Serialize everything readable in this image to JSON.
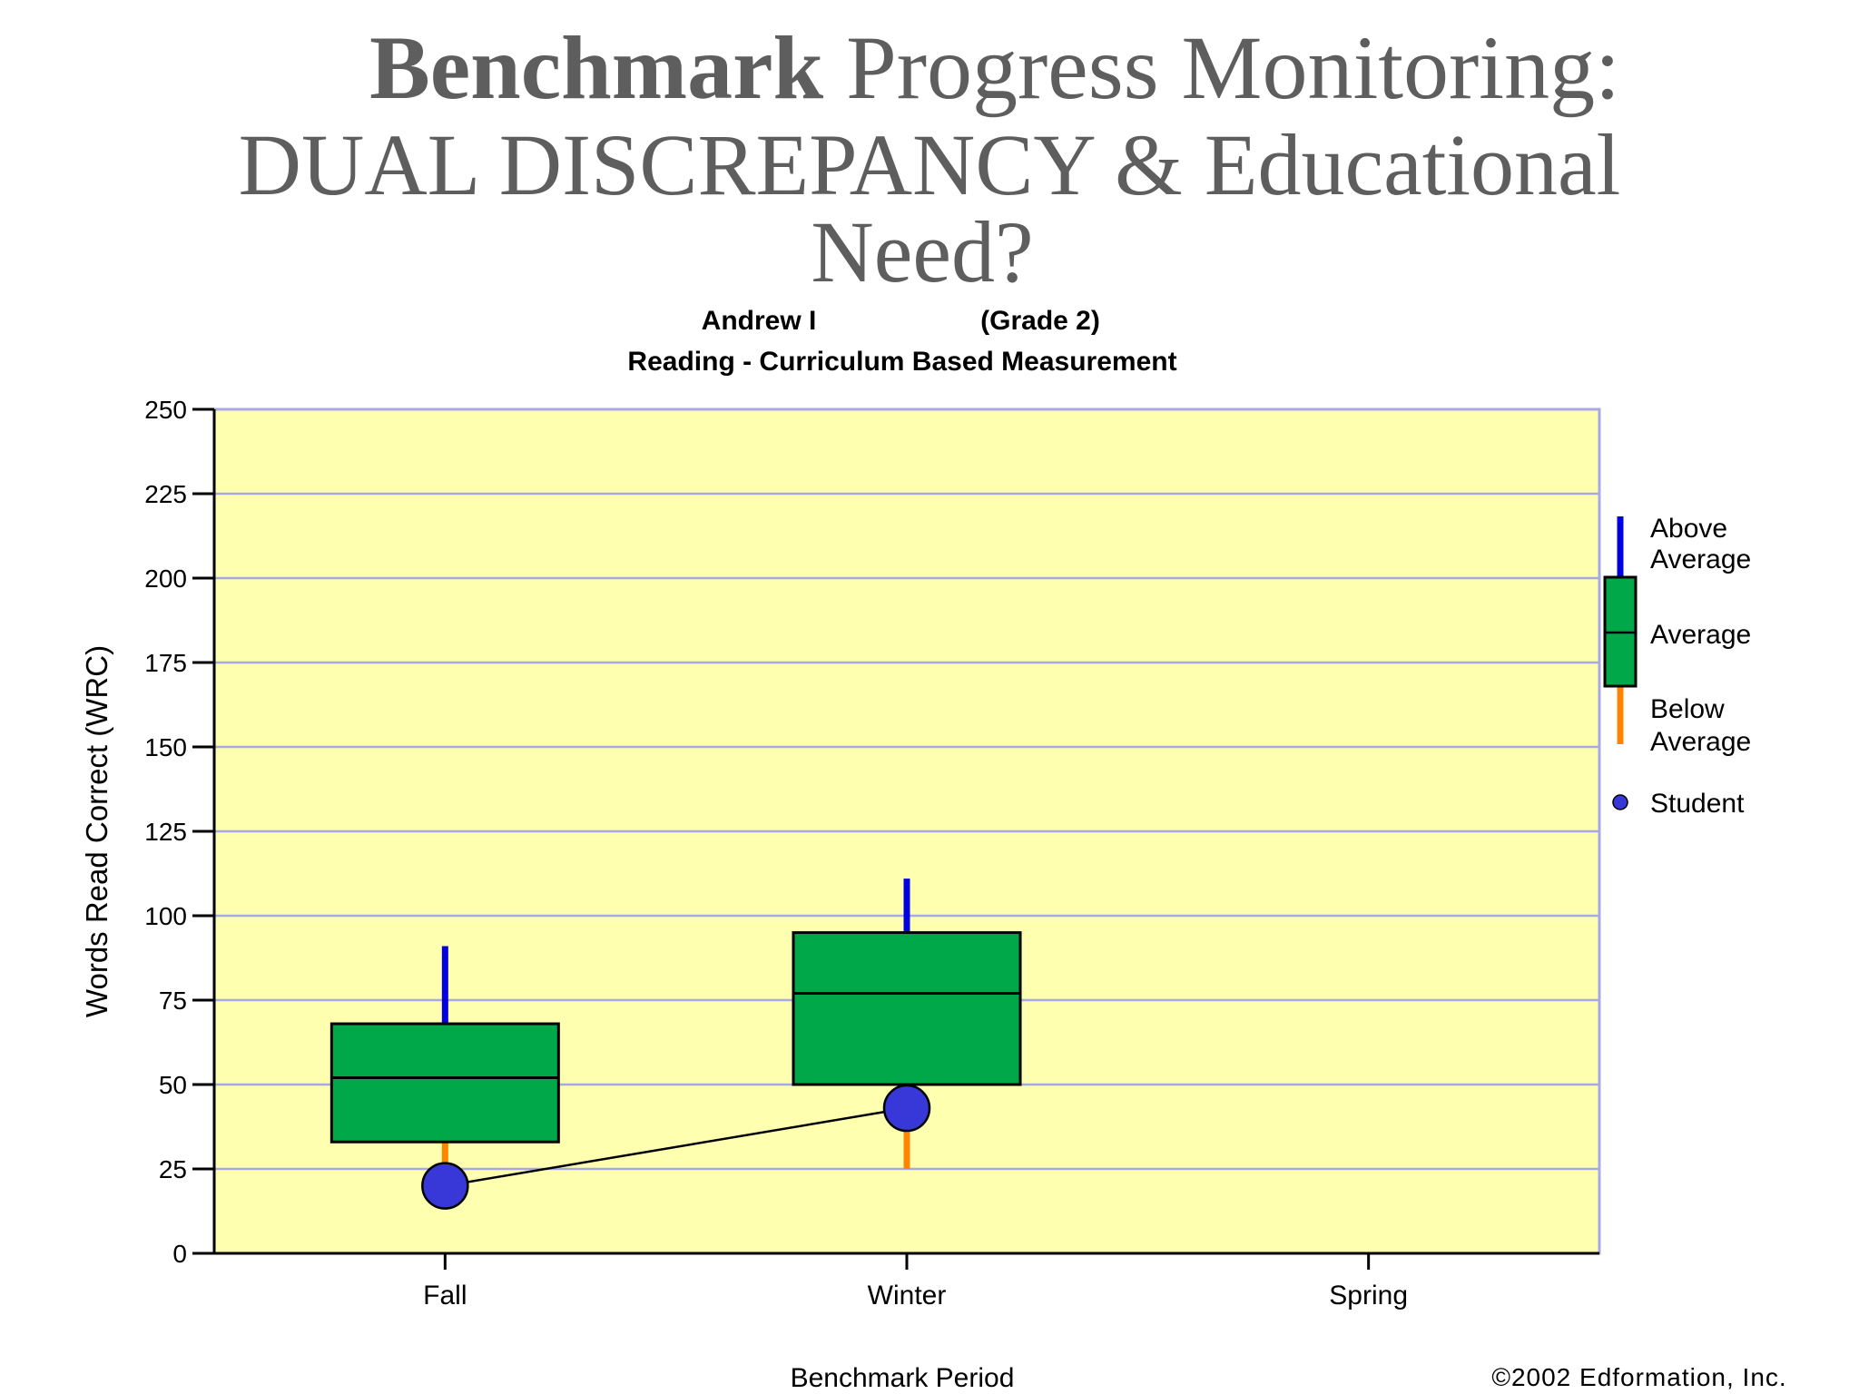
{
  "title": {
    "bold": "Benchmark",
    "line1_rest": " Progress Monitoring:",
    "line2": "DUAL DISCREPANCY & Educational",
    "line3": "Need?"
  },
  "chart_data": {
    "type": "box",
    "student_name": "Andrew I",
    "grade": "(Grade 2)",
    "subtitle": "Reading - Curriculum Based Measurement",
    "ylabel": "Words Read Correct (WRC)",
    "xlabel": "Benchmark Period",
    "ylim": [
      0,
      250
    ],
    "yticks": [
      0,
      25,
      50,
      75,
      100,
      125,
      150,
      175,
      200,
      225,
      250
    ],
    "categories": [
      "Fall",
      "Winter",
      "Spring"
    ],
    "boxes": [
      {
        "category": "Fall",
        "low": 20,
        "q1": 33,
        "median": 52,
        "q3": 68,
        "high": 91
      },
      {
        "category": "Winter",
        "low": 25,
        "q1": 50,
        "median": 77,
        "q3": 95,
        "high": 111
      }
    ],
    "student": [
      {
        "category": "Fall",
        "value": 20
      },
      {
        "category": "Winter",
        "value": 43
      }
    ],
    "legend": {
      "above": [
        "Above",
        "Average"
      ],
      "average": "Average",
      "below": [
        "Below",
        "Average"
      ],
      "student": "Student"
    },
    "copyright": "©2002 Edformation, Inc.",
    "grid": true,
    "colors": {
      "plot_bg": "#ffffb0",
      "grid": "#a8a8e8",
      "box": "#00a84a",
      "above": "#0000e0",
      "below": "#ff8400",
      "student": "#3838d8"
    }
  }
}
